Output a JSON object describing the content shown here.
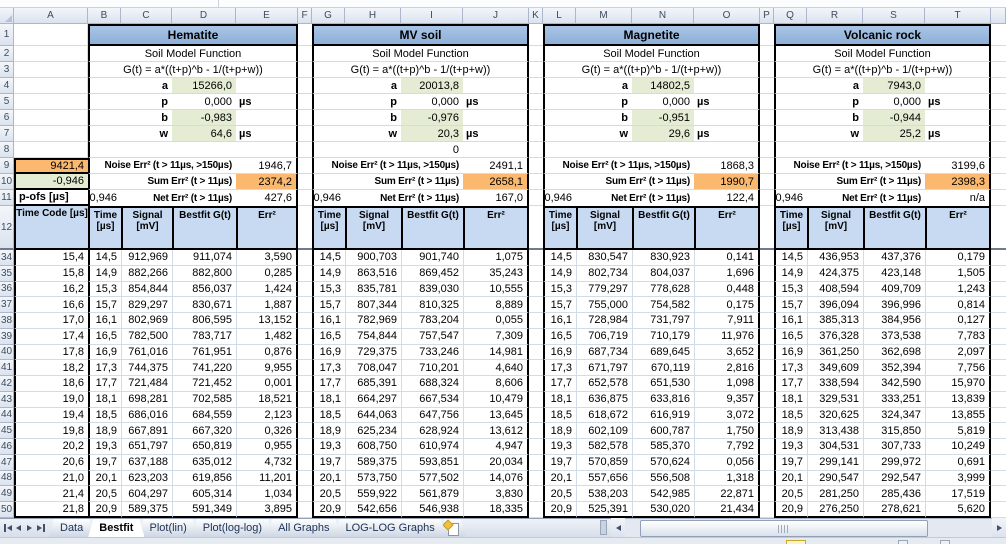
{
  "theme": {
    "title_blue": "#95B3D7",
    "table_header_blue": "#C7DAF1",
    "param_green": "#E4ECD4",
    "highlight_orange": "#FAB96E",
    "gridline": "#D4DBE8"
  },
  "sheet": {
    "column_letters": [
      "A",
      "B",
      "C",
      "D",
      "E",
      "F",
      "G",
      "H",
      "I",
      "J",
      "K",
      "L",
      "M",
      "N",
      "O",
      "P",
      "Q",
      "R",
      "S",
      "T"
    ],
    "row_numbers": [
      1,
      2,
      3,
      4,
      5,
      6,
      7,
      8,
      9,
      10,
      11,
      12,
      34,
      35,
      36,
      37,
      38,
      39,
      40,
      41,
      42,
      43,
      44,
      45,
      46,
      47,
      48,
      49,
      50
    ],
    "time_code_column": {
      "r9_value": "9421,4",
      "r10_value": "-0,946",
      "r11_label": "p-ofs [µs]",
      "header": "Time Code [µs]",
      "values": [
        "15,4",
        "15,8",
        "16,2",
        "16,6",
        "17,0",
        "17,4",
        "17,8",
        "18,2",
        "18,6",
        "19,0",
        "19,4",
        "19,8",
        "20,2",
        "20,6",
        "21,0",
        "21,4",
        "21,8"
      ]
    },
    "groups": [
      {
        "title": "Hematite",
        "subtitle": "Soil Model Function",
        "formula": "G(t) = a*((t+p)^b - 1/(t+p+w))",
        "params": [
          {
            "name": "a",
            "value": "15266,0",
            "unit": "",
            "green": true
          },
          {
            "name": "p",
            "value": "0,000",
            "unit": "µs",
            "green": false
          },
          {
            "name": "b",
            "value": "-0,983",
            "unit": "",
            "green": true
          },
          {
            "name": "w",
            "value": "64,6",
            "unit": "µs",
            "green": true
          }
        ],
        "row8_value": "",
        "noise_label": "Noise Err² (t > 11µs, >150µs)",
        "noise_value": "1946,7",
        "sum_label": "Sum Err² (t > 11µs)",
        "sum_value": "2374,2",
        "net_prefix": "-0,946",
        "net_label": "Net Err² (t > 11µs)",
        "net_value": "427,6",
        "headers": [
          "Time [µs]",
          "Signal [mV]",
          "Bestfit G(t)",
          "Err²"
        ],
        "rows": [
          [
            "14,5",
            "912,969",
            "911,074",
            "3,590"
          ],
          [
            "14,9",
            "882,266",
            "882,800",
            "0,285"
          ],
          [
            "15,3",
            "854,844",
            "856,037",
            "1,424"
          ],
          [
            "15,7",
            "829,297",
            "830,671",
            "1,887"
          ],
          [
            "16,1",
            "802,969",
            "806,595",
            "13,152"
          ],
          [
            "16,5",
            "782,500",
            "783,717",
            "1,482"
          ],
          [
            "16,9",
            "761,016",
            "761,951",
            "0,876"
          ],
          [
            "17,3",
            "744,375",
            "741,220",
            "9,955"
          ],
          [
            "17,7",
            "721,484",
            "721,452",
            "0,001"
          ],
          [
            "18,1",
            "698,281",
            "702,585",
            "18,521"
          ],
          [
            "18,5",
            "686,016",
            "684,559",
            "2,123"
          ],
          [
            "18,9",
            "667,891",
            "667,320",
            "0,326"
          ],
          [
            "19,3",
            "651,797",
            "650,819",
            "0,955"
          ],
          [
            "19,7",
            "637,188",
            "635,012",
            "4,732"
          ],
          [
            "20,1",
            "623,203",
            "619,856",
            "11,201"
          ],
          [
            "20,5",
            "604,297",
            "605,314",
            "1,034"
          ],
          [
            "20,9",
            "589,375",
            "591,349",
            "3,895"
          ]
        ]
      },
      {
        "title": "MV soil",
        "subtitle": "Soil Model Function",
        "formula": "G(t) = a*((t+p)^b - 1/(t+p+w))",
        "params": [
          {
            "name": "a",
            "value": "20013,8",
            "unit": "",
            "green": true
          },
          {
            "name": "p",
            "value": "0,000",
            "unit": "µs",
            "green": false
          },
          {
            "name": "b",
            "value": "-0,976",
            "unit": "",
            "green": true
          },
          {
            "name": "w",
            "value": "20,3",
            "unit": "µs",
            "green": true
          }
        ],
        "row8_value": "0",
        "noise_label": "Noise Err² (t > 11µs, >150µs)",
        "noise_value": "2491,1",
        "sum_label": "Sum Err² (t > 11µs)",
        "sum_value": "2658,1",
        "net_prefix": "-0,946",
        "net_label": "Net Err² (t > 11µs)",
        "net_value": "167,0",
        "headers": [
          "Time [µs]",
          "Signal [mV]",
          "Bestfit G(t)",
          "Err²"
        ],
        "rows": [
          [
            "14,5",
            "900,703",
            "901,740",
            "1,075"
          ],
          [
            "14,9",
            "863,516",
            "869,452",
            "35,243"
          ],
          [
            "15,3",
            "835,781",
            "839,030",
            "10,555"
          ],
          [
            "15,7",
            "807,344",
            "810,325",
            "8,889"
          ],
          [
            "16,1",
            "782,969",
            "783,204",
            "0,055"
          ],
          [
            "16,5",
            "754,844",
            "757,547",
            "7,309"
          ],
          [
            "16,9",
            "729,375",
            "733,246",
            "14,981"
          ],
          [
            "17,3",
            "708,047",
            "710,201",
            "4,640"
          ],
          [
            "17,7",
            "685,391",
            "688,324",
            "8,606"
          ],
          [
            "18,1",
            "664,297",
            "667,534",
            "10,479"
          ],
          [
            "18,5",
            "644,063",
            "647,756",
            "13,645"
          ],
          [
            "18,9",
            "625,234",
            "628,924",
            "13,612"
          ],
          [
            "19,3",
            "608,750",
            "610,974",
            "4,947"
          ],
          [
            "19,7",
            "589,375",
            "593,851",
            "20,034"
          ],
          [
            "20,1",
            "573,750",
            "577,502",
            "14,076"
          ],
          [
            "20,5",
            "559,922",
            "561,879",
            "3,830"
          ],
          [
            "20,9",
            "542,656",
            "546,938",
            "18,335"
          ]
        ]
      },
      {
        "title": "Magnetite",
        "subtitle": "Soil Model Function",
        "formula": "G(t) = a*((t+p)^b - 1/(t+p+w))",
        "params": [
          {
            "name": "a",
            "value": "14802,5",
            "unit": "",
            "green": true
          },
          {
            "name": "p",
            "value": "0,000",
            "unit": "µs",
            "green": false
          },
          {
            "name": "b",
            "value": "-0,951",
            "unit": "",
            "green": true
          },
          {
            "name": "w",
            "value": "29,6",
            "unit": "µs",
            "green": true
          }
        ],
        "row8_value": "",
        "noise_label": "Noise Err² (t > 11µs, >150µs)",
        "noise_value": "1868,3",
        "sum_label": "Sum Err² (t > 11µs)",
        "sum_value": "1990,7",
        "net_prefix": "-0,946",
        "net_label": "Net Err² (t > 11µs)",
        "net_value": "122,4",
        "headers": [
          "Time [µs]",
          "Signal [mV]",
          "Bestfit G(t)",
          "Err²"
        ],
        "rows": [
          [
            "14,5",
            "830,547",
            "830,923",
            "0,141"
          ],
          [
            "14,9",
            "802,734",
            "804,037",
            "1,696"
          ],
          [
            "15,3",
            "779,297",
            "778,628",
            "0,448"
          ],
          [
            "15,7",
            "755,000",
            "754,582",
            "0,175"
          ],
          [
            "16,1",
            "728,984",
            "731,797",
            "7,911"
          ],
          [
            "16,5",
            "706,719",
            "710,179",
            "11,976"
          ],
          [
            "16,9",
            "687,734",
            "689,645",
            "3,652"
          ],
          [
            "17,3",
            "671,797",
            "670,119",
            "2,816"
          ],
          [
            "17,7",
            "652,578",
            "651,530",
            "1,098"
          ],
          [
            "18,1",
            "636,875",
            "633,816",
            "9,357"
          ],
          [
            "18,5",
            "618,672",
            "616,919",
            "3,072"
          ],
          [
            "18,9",
            "602,109",
            "600,787",
            "1,750"
          ],
          [
            "19,3",
            "582,578",
            "585,370",
            "7,792"
          ],
          [
            "19,7",
            "570,859",
            "570,624",
            "0,056"
          ],
          [
            "20,1",
            "557,656",
            "556,508",
            "1,318"
          ],
          [
            "20,5",
            "538,203",
            "542,985",
            "22,871"
          ],
          [
            "20,9",
            "525,391",
            "530,020",
            "21,434"
          ]
        ]
      },
      {
        "title": "Volcanic rock",
        "subtitle": "Soil Model Function",
        "formula": "G(t) = a*((t+p)^b - 1/(t+p+w))",
        "params": [
          {
            "name": "a",
            "value": "7943,0",
            "unit": "",
            "green": true
          },
          {
            "name": "p",
            "value": "0,000",
            "unit": "µs",
            "green": false
          },
          {
            "name": "b",
            "value": "-0,944",
            "unit": "",
            "green": true
          },
          {
            "name": "w",
            "value": "25,2",
            "unit": "µs",
            "green": true
          }
        ],
        "row8_value": "",
        "noise_label": "Noise Err² (t > 11µs, >150µs)",
        "noise_value": "3199,6",
        "sum_label": "Sum Err² (t > 11µs)",
        "sum_value": "2398,3",
        "net_prefix": "-0,946",
        "net_label": "Net Err² (t > 11µs)",
        "net_value": "n/a",
        "headers": [
          "Time [µs]",
          "Signal [mV]",
          "Bestfit G(t)",
          "Err²"
        ],
        "rows": [
          [
            "14,5",
            "436,953",
            "437,376",
            "0,179"
          ],
          [
            "14,9",
            "424,375",
            "423,148",
            "1,505"
          ],
          [
            "15,3",
            "408,594",
            "409,709",
            "1,243"
          ],
          [
            "15,7",
            "396,094",
            "396,996",
            "0,814"
          ],
          [
            "16,1",
            "385,313",
            "384,956",
            "0,127"
          ],
          [
            "16,5",
            "376,328",
            "373,538",
            "7,783"
          ],
          [
            "16,9",
            "361,250",
            "362,698",
            "2,097"
          ],
          [
            "17,3",
            "349,609",
            "352,394",
            "7,756"
          ],
          [
            "17,7",
            "338,594",
            "342,590",
            "15,970"
          ],
          [
            "18,1",
            "329,531",
            "333,251",
            "13,839"
          ],
          [
            "18,5",
            "320,625",
            "324,347",
            "13,855"
          ],
          [
            "18,9",
            "313,438",
            "315,850",
            "5,819"
          ],
          [
            "19,3",
            "304,531",
            "307,733",
            "10,249"
          ],
          [
            "19,7",
            "299,141",
            "299,972",
            "0,691"
          ],
          [
            "20,1",
            "290,547",
            "292,547",
            "3,999"
          ],
          [
            "20,5",
            "281,250",
            "285,436",
            "17,519"
          ],
          [
            "20,9",
            "276,250",
            "278,621",
            "5,620"
          ]
        ]
      }
    ]
  },
  "tab_bar": {
    "tabs": [
      {
        "label": "Data",
        "active": false
      },
      {
        "label": "Bestfit",
        "active": true
      },
      {
        "label": "Plot(lin)",
        "active": false
      },
      {
        "label": "Plot(log-log)",
        "active": false
      },
      {
        "label": "All Graphs",
        "active": false
      },
      {
        "label": "LOG-LOG Graphs",
        "active": false
      }
    ]
  }
}
